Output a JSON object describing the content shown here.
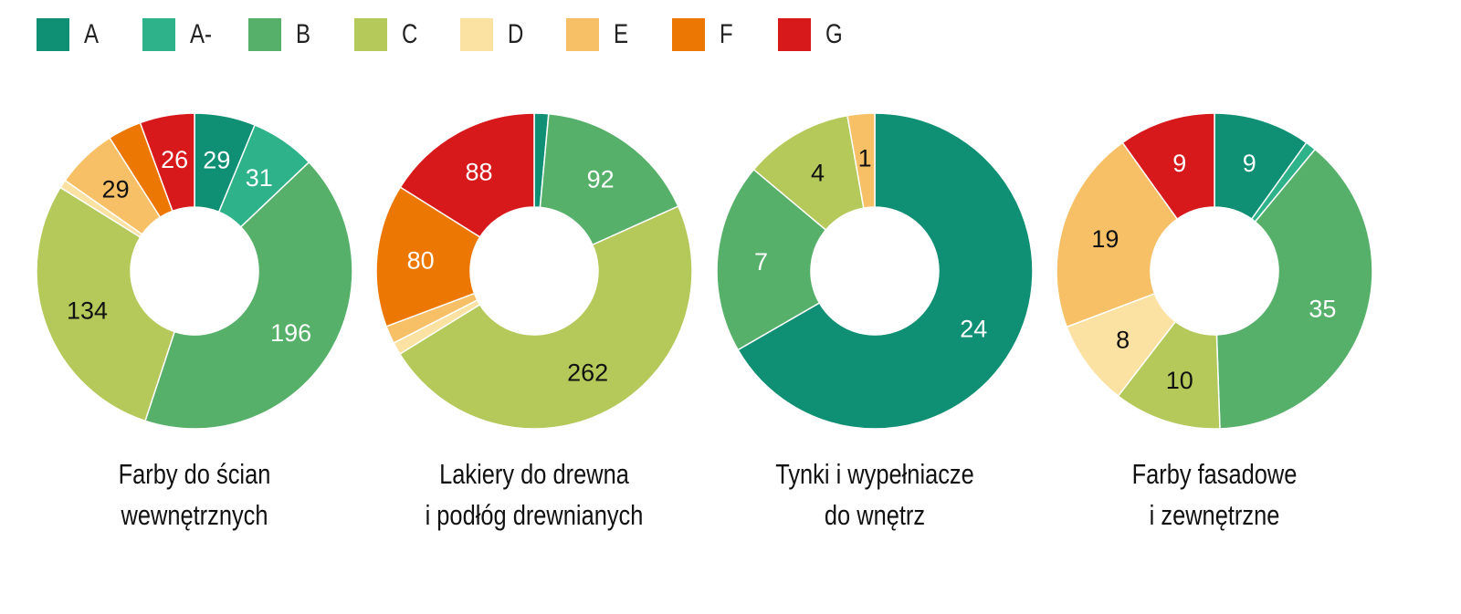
{
  "legend": [
    {
      "label": "A",
      "color": "#0f8f74"
    },
    {
      "label": "A-",
      "color": "#2eb28a"
    },
    {
      "label": "B",
      "color": "#56b06a"
    },
    {
      "label": "C",
      "color": "#b5c85a"
    },
    {
      "label": "D",
      "color": "#fbe2a2"
    },
    {
      "label": "E",
      "color": "#f7c066"
    },
    {
      "label": "F",
      "color": "#ec7703"
    },
    {
      "label": "G",
      "color": "#d7191c"
    }
  ],
  "chart_data": [
    {
      "type": "pie",
      "title_line1": "Farby do ścian",
      "title_line2": "wewnętrznych",
      "categories": [
        "A",
        "A-",
        "B",
        "C",
        "D",
        "E",
        "F",
        "G"
      ],
      "values": [
        29,
        31,
        196,
        134,
        4,
        29,
        16,
        26
      ],
      "labeled": [
        true,
        true,
        true,
        true,
        false,
        true,
        false,
        true
      ]
    },
    {
      "type": "pie",
      "title_line1": "Lakiery do drewna",
      "title_line2": "i podłóg drewnianych",
      "categories": [
        "A",
        "A-",
        "B",
        "C",
        "D",
        "E",
        "F",
        "G"
      ],
      "values": [
        8,
        0,
        92,
        262,
        7,
        10,
        80,
        88
      ],
      "labeled": [
        false,
        false,
        true,
        true,
        false,
        false,
        true,
        true
      ]
    },
    {
      "type": "pie",
      "title_line1": "Tynki i wypełniacze",
      "title_line2": "do wnętrz",
      "categories": [
        "A",
        "A-",
        "B",
        "C",
        "D",
        "E",
        "F",
        "G"
      ],
      "values": [
        24,
        0,
        7,
        4,
        0,
        1,
        0,
        0
      ],
      "labeled": [
        true,
        false,
        true,
        true,
        false,
        true,
        false,
        false
      ]
    },
    {
      "type": "pie",
      "title_line1": "Farby fasadowe",
      "title_line2": "i zewnętrzne",
      "categories": [
        "A",
        "A-",
        "B",
        "C",
        "D",
        "E",
        "F",
        "G"
      ],
      "values": [
        9,
        1,
        35,
        10,
        8,
        19,
        0,
        9
      ],
      "labeled": [
        true,
        false,
        true,
        true,
        true,
        true,
        false,
        true
      ]
    }
  ]
}
